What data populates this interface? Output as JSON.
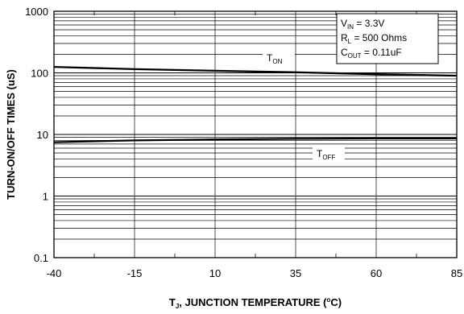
{
  "chart_data": {
    "type": "line",
    "xlabel": {
      "main": "T",
      "sub": "J",
      "rest": ", JUNCTION TEMPERATURE (",
      "sup": "o",
      "end": "C)"
    },
    "ylabel": "TURN-ON/OFF TIMES (uS)",
    "x_ticks": [
      "-40",
      "-15",
      "10",
      "35",
      "60",
      "85"
    ],
    "y_ticks": [
      "0.1",
      "1",
      "10",
      "100",
      "1000"
    ],
    "xlim": [
      -40,
      85
    ],
    "ylim": [
      0.1,
      1000
    ],
    "y_scale": "log",
    "grid": true,
    "series": [
      {
        "name": "T_ON",
        "label_main": "T",
        "label_sub": "ON",
        "x": [
          -40,
          -15,
          10,
          35,
          60,
          85
        ],
        "values": [
          125,
          115,
          108,
          102,
          95,
          90
        ]
      },
      {
        "name": "T_OFF",
        "label_main": "T",
        "label_sub": "OFF",
        "x": [
          -40,
          -15,
          10,
          35,
          60,
          85
        ],
        "values": [
          7.5,
          8.0,
          8.3,
          8.5,
          8.6,
          8.6
        ]
      }
    ],
    "conditions": [
      {
        "main": "V",
        "sub": "IN",
        "rest": " = 3.3V"
      },
      {
        "main": "R",
        "sub": "L",
        "rest": " = 500 Ohms"
      },
      {
        "main": "C",
        "sub": "OUT",
        "rest": " = 0.11uF"
      }
    ]
  }
}
